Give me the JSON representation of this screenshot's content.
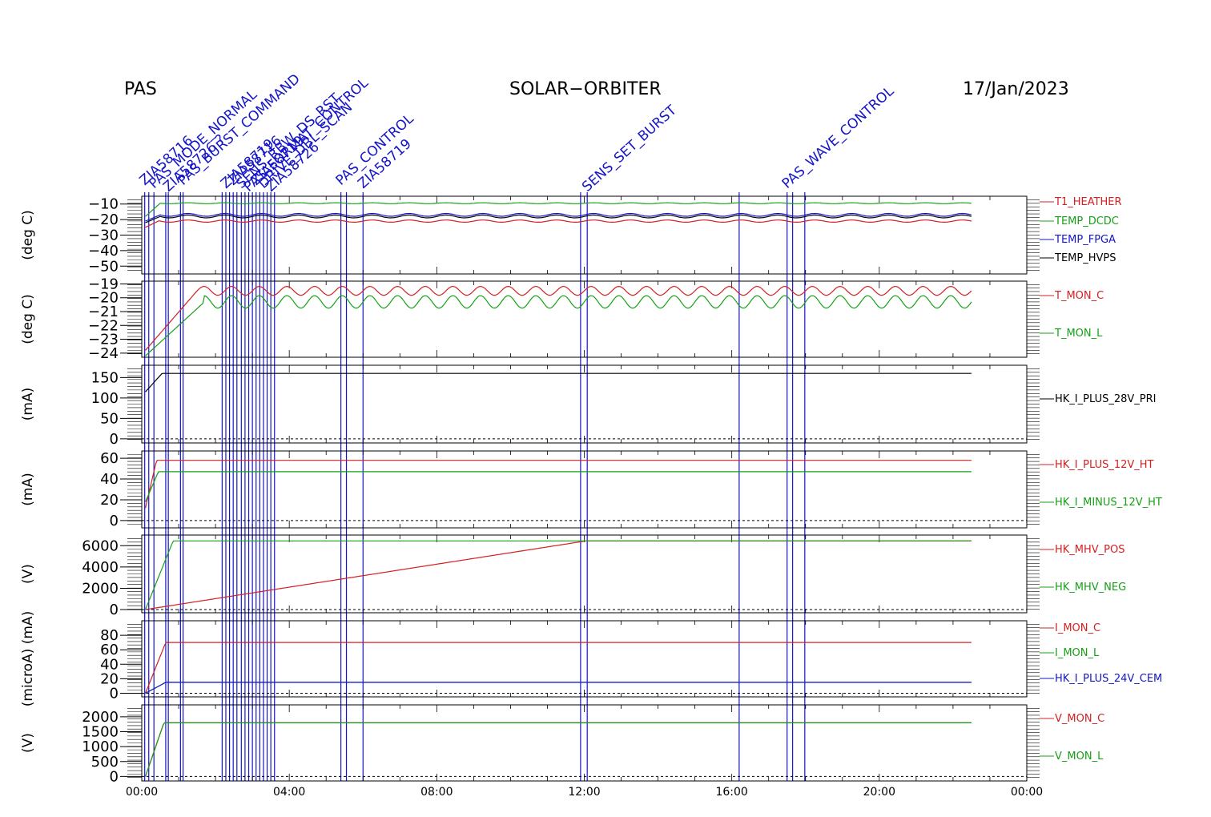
{
  "header": {
    "instrument": "PAS",
    "mission": "SOLAR−ORBITER",
    "date": "17/Jan/2023"
  },
  "colors": {
    "red": "#d42020",
    "green": "#16a016",
    "blue": "#1515c8",
    "black": "#000000",
    "brown": "#8b5a14"
  },
  "chart_data": {
    "type": "line",
    "x_axis": {
      "range_hours": [
        0,
        24
      ],
      "tick_labels": [
        "00:00",
        "04:00",
        "08:00",
        "12:00",
        "16:00",
        "20:00",
        "00:00"
      ]
    },
    "events": {
      "times_hours": [
        0.08,
        0.19,
        0.33,
        0.65,
        0.72,
        1.05,
        1.12,
        2.18,
        2.28,
        2.38,
        2.48,
        2.58,
        2.7,
        2.8,
        2.9,
        3.0,
        3.1,
        3.2,
        3.3,
        3.4,
        3.5,
        3.6,
        5.4,
        5.55,
        6.0,
        11.9,
        12.08,
        16.2,
        17.5,
        17.65,
        17.98
      ],
      "labels": [
        "ZIA58716",
        "PAS_MODE_NORMAL",
        "ZIA58726 ?",
        "PAS_BURST_COMMAND",
        "ZIA58719",
        "ZIA58716",
        "SENS_RBW_DS_RST",
        "PAS_FORMAT_CONTROL",
        "ZIA58719",
        "DRIVE_DBL_SCAN",
        "ZIA58726",
        "PAS_CONTROL",
        "ZIA58719",
        "SENS_SET_BURST",
        "PAS_WAVE_CONTROL"
      ]
    },
    "panels": [
      {
        "ylabel": "(deg C)",
        "ylim": [
          -55,
          -5
        ],
        "yticks": [
          -10,
          -20,
          -30,
          -40,
          -50
        ],
        "series": [
          {
            "name": "T1_HEATHER",
            "color": "#d42020",
            "start": -25,
            "settle_hour": 0.45,
            "level": -21,
            "osc": 0.7,
            "period": 1.0
          },
          {
            "name": "TEMP_DCDC",
            "color": "#16a016",
            "start": -18,
            "settle_hour": 0.5,
            "level": -9.5,
            "osc": 0.3,
            "period": 1.0
          },
          {
            "name": "TEMP_FPGA",
            "color": "#1515c8",
            "start": -21,
            "settle_hour": 0.5,
            "level": -17,
            "osc": 0.9,
            "period": 1.0
          },
          {
            "name": "TEMP_HVPS",
            "color": "#000000",
            "start": -22,
            "settle_hour": 0.5,
            "level": -18,
            "osc": 0.9,
            "period": 1.0
          }
        ]
      },
      {
        "ylabel": "(deg C)",
        "ylim": [
          -24.3,
          -18.8
        ],
        "yticks": [
          -19,
          -20,
          -21,
          -22,
          -23,
          -24
        ],
        "series": [
          {
            "name": "T_MON_C",
            "color": "#d42020",
            "start": -23.8,
            "settle_hour": 1.5,
            "level": -19.5,
            "osc": 0.32,
            "period": 0.75
          },
          {
            "name": "T_MON_L",
            "color": "#16a016",
            "start": -24.2,
            "settle_hour": 1.7,
            "level": -20.3,
            "osc": 0.45,
            "period": 0.75
          }
        ]
      },
      {
        "ylabel": "(mA)",
        "ylim": [
          -10,
          180
        ],
        "yticks": [
          150,
          100,
          50,
          0
        ],
        "series": [
          {
            "name": "HK_I_PLUS_28V_PRI",
            "color": "#000000",
            "start": 115,
            "settle_hour": 0.55,
            "level": 160,
            "osc": 0,
            "period": 1.0
          }
        ]
      },
      {
        "ylabel": "(mA)",
        "ylim": [
          -7,
          67
        ],
        "yticks": [
          60,
          40,
          20,
          0
        ],
        "series": [
          {
            "name": "HK_I_PLUS_12V_HT",
            "color": "#d42020",
            "start": 12,
            "settle_hour": 0.4,
            "level": 58,
            "osc": 0,
            "period": 1.0
          },
          {
            "name": "HK_I_MINUS_12V_HT",
            "color": "#16a016",
            "start": 18,
            "settle_hour": 0.45,
            "level": 47,
            "osc": 0,
            "period": 1.0
          }
        ]
      },
      {
        "ylabel": "(V)",
        "ylim": [
          -300,
          7000
        ],
        "yticks": [
          6000,
          4000,
          2000,
          0
        ],
        "series": [
          {
            "name": "HK_MHV_POS",
            "color": "#d42020",
            "start": 0,
            "settle_hour": 12.05,
            "level": 6450,
            "osc": 0,
            "period": 1.0
          },
          {
            "name": "HK_MHV_NEG",
            "color": "#16a016",
            "start": 0,
            "settle_hour": 0.85,
            "level": 6450,
            "osc": 0,
            "period": 1.0
          }
        ]
      },
      {
        "ylabel": "(microA) (mA)",
        "ylim": [
          -5,
          100
        ],
        "yticks": [
          80,
          60,
          40,
          20,
          0
        ],
        "series": [
          {
            "name": "I_MON_C",
            "color": "#d42020",
            "start": 0,
            "settle_hour": 0.65,
            "level": 70,
            "osc": 0,
            "period": 1.0
          },
          {
            "name": "I_MON_L",
            "color": "#16a016",
            "start": 0,
            "settle_hour": 0.65,
            "level": 15,
            "osc": 0,
            "period": 1.0
          },
          {
            "name": "HK_I_PLUS_24V_CEM",
            "color": "#1515c8",
            "start": 0,
            "settle_hour": 0.65,
            "level": 15,
            "osc": 0,
            "period": 1.0
          }
        ]
      },
      {
        "ylabel": "(V)",
        "ylim": [
          -150,
          2400
        ],
        "yticks": [
          2000,
          1500,
          1000,
          500,
          0
        ],
        "series": [
          {
            "name": "V_MON_C",
            "color": "#d42020",
            "start": 0,
            "settle_hour": 0.6,
            "level": 1800,
            "osc": 0,
            "period": 1.0
          },
          {
            "name": "V_MON_L",
            "color": "#16a016",
            "start": 0,
            "settle_hour": 0.6,
            "level": 1800,
            "osc": 0,
            "period": 1.0
          }
        ]
      }
    ]
  }
}
